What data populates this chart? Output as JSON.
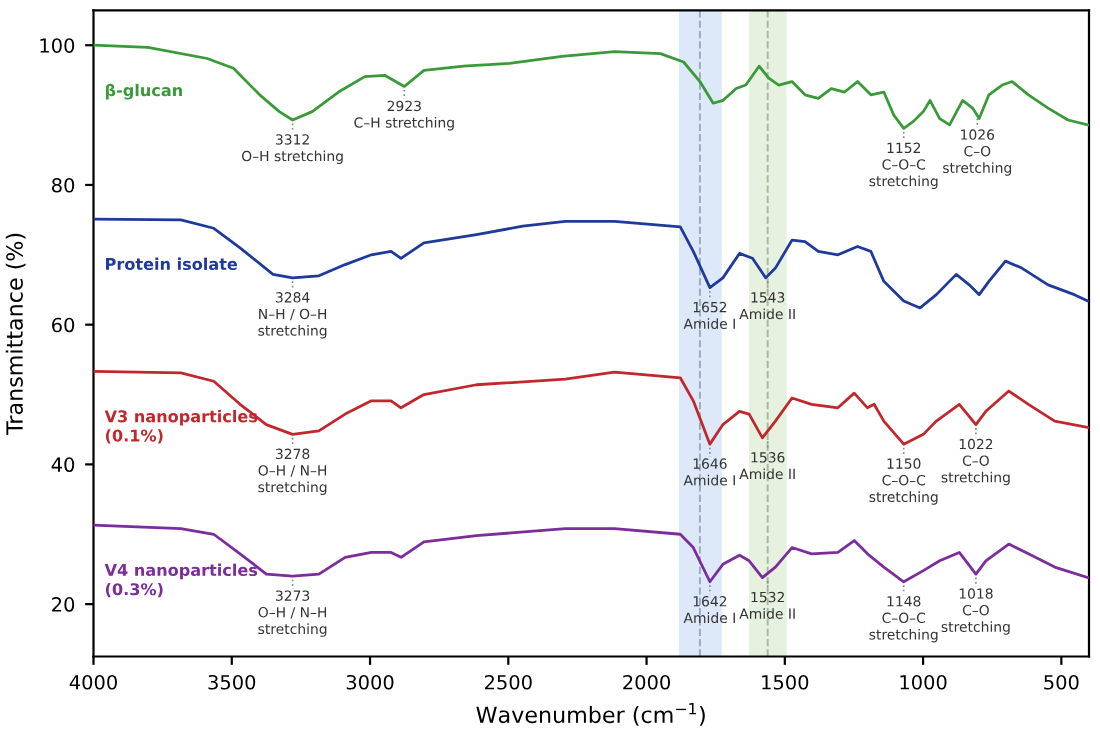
{
  "chart_data": {
    "type": "line",
    "xlabel": "Wavenumber (cm$^{−1}$)",
    "ylabel": "Transmittance (%)",
    "xlim": [
      4000,
      400
    ],
    "ylim": [
      12.5,
      105
    ],
    "xticks": [
      4000,
      3500,
      3000,
      2500,
      2000,
      1500,
      1000,
      500
    ],
    "yticks": [
      20,
      40,
      60,
      80,
      100
    ],
    "grid": false,
    "marker": "none",
    "line_style": "solid",
    "series": [
      {
        "name": "β-glucan",
        "color": "#3a9a3a",
        "x": [
          4000,
          3803,
          3589,
          3494,
          3399,
          3328,
          3280,
          3209,
          3114,
          3019,
          2947,
          2876,
          2805,
          2662,
          2496,
          2306,
          2116,
          1950,
          1866,
          1807,
          1759,
          1724,
          1676,
          1641,
          1593,
          1558,
          1522,
          1474,
          1427,
          1379,
          1332,
          1284,
          1237,
          1189,
          1142,
          1106,
          1070,
          1035,
          999,
          975,
          940,
          904,
          857,
          821,
          797,
          762,
          714,
          678,
          619,
          548,
          476,
          405
        ],
        "values": [
          100.0,
          99.7,
          98.1,
          96.7,
          92.9,
          90.5,
          89.3,
          90.5,
          93.3,
          95.5,
          95.7,
          94.1,
          96.4,
          97.0,
          97.4,
          98.4,
          99.1,
          98.8,
          97.6,
          94.8,
          91.7,
          92.1,
          93.8,
          94.3,
          97.0,
          95.3,
          94.3,
          94.8,
          92.9,
          92.4,
          93.8,
          93.3,
          94.8,
          92.9,
          93.3,
          90.0,
          88.1,
          89.1,
          90.5,
          92.1,
          89.5,
          88.6,
          92.1,
          91.0,
          89.5,
          92.9,
          94.3,
          94.8,
          92.9,
          91.0,
          89.3,
          88.6
        ]
      },
      {
        "name": "Protein isolate",
        "color": "#1f3a9a",
        "x": [
          4000,
          3684,
          3565,
          3470,
          3351,
          3280,
          3185,
          3090,
          2995,
          2924,
          2888,
          2805,
          2615,
          2448,
          2294,
          2116,
          1878,
          1831,
          1771,
          1724,
          1664,
          1617,
          1569,
          1534,
          1474,
          1427,
          1379,
          1308,
          1237,
          1189,
          1142,
          1070,
          1011,
          952,
          880,
          833,
          797,
          762,
          702,
          643,
          548,
          453,
          405
        ],
        "values": [
          75.1,
          75.0,
          73.8,
          71.0,
          67.2,
          66.7,
          67.0,
          68.6,
          70.0,
          70.5,
          69.5,
          71.7,
          72.9,
          74.1,
          74.8,
          74.8,
          74.0,
          70.5,
          65.3,
          66.7,
          70.2,
          69.5,
          66.7,
          68.1,
          72.1,
          71.9,
          70.5,
          70.0,
          71.2,
          70.5,
          66.2,
          63.4,
          62.4,
          64.3,
          67.2,
          65.7,
          64.3,
          66.2,
          69.1,
          68.1,
          65.7,
          64.3,
          63.4
        ]
      },
      {
        "name": "V3 nanoparticles\n(0.1%)",
        "color": "#c0282d",
        "x": [
          4000,
          3684,
          3565,
          3470,
          3375,
          3280,
          3185,
          3090,
          2995,
          2924,
          2888,
          2805,
          2615,
          2294,
          2116,
          1878,
          1831,
          1771,
          1724,
          1664,
          1629,
          1581,
          1534,
          1474,
          1403,
          1308,
          1249,
          1201,
          1177,
          1142,
          1070,
          999,
          952,
          869,
          809,
          773,
          690,
          619,
          524,
          405
        ],
        "values": [
          53.3,
          53.1,
          51.9,
          48.6,
          45.7,
          44.3,
          44.8,
          47.2,
          49.1,
          49.1,
          48.1,
          50.0,
          51.4,
          52.2,
          53.2,
          52.4,
          49.1,
          42.9,
          45.7,
          47.6,
          47.2,
          43.8,
          46.2,
          49.5,
          48.6,
          48.1,
          50.2,
          48.1,
          48.6,
          46.2,
          42.9,
          44.3,
          46.2,
          48.6,
          45.7,
          47.6,
          50.5,
          48.6,
          46.2,
          45.3
        ]
      },
      {
        "name": "V4 nanoparticles\n(0.3%)",
        "color": "#7b2d9b",
        "x": [
          4000,
          3684,
          3565,
          3470,
          3375,
          3280,
          3185,
          3090,
          2995,
          2924,
          2888,
          2805,
          2615,
          2294,
          2116,
          1878,
          1831,
          1771,
          1724,
          1664,
          1629,
          1581,
          1534,
          1474,
          1403,
          1308,
          1249,
          1201,
          1142,
          1070,
          999,
          940,
          869,
          809,
          773,
          690,
          619,
          524,
          405
        ],
        "values": [
          31.3,
          30.8,
          30.0,
          27.2,
          24.3,
          24.0,
          24.3,
          26.7,
          27.4,
          27.4,
          26.7,
          28.9,
          29.8,
          30.8,
          30.8,
          30.0,
          28.1,
          23.2,
          25.7,
          27.0,
          26.2,
          23.8,
          25.3,
          28.1,
          27.2,
          27.4,
          29.1,
          27.2,
          25.3,
          23.2,
          24.8,
          26.2,
          27.4,
          24.3,
          26.2,
          28.6,
          27.2,
          25.3,
          23.8
        ]
      }
    ],
    "bands": [
      {
        "axis": "x",
        "from": 1883,
        "to": 1728,
        "label": null,
        "color": "#cfe0f5"
      },
      {
        "axis": "x",
        "from": 1629,
        "to": 1493,
        "label": null,
        "color": "#dcebd2"
      }
    ],
    "ref_lines": [
      {
        "axis": "x",
        "value": 1807,
        "label": null,
        "color": "#9aaac0",
        "line_style": "dashed"
      },
      {
        "axis": "x",
        "value": 1562,
        "label": null,
        "color": "#a8b89a",
        "line_style": "dashed"
      }
    ],
    "annotations": [
      {
        "text": "3312\nO–H stretching",
        "x": 3280,
        "y": 89.3
      },
      {
        "text": "2923\nC–H stretching",
        "x": 2876,
        "y": 94.1
      },
      {
        "text": "1152\nC–O–C\nstretching",
        "x": 1070,
        "y": 88.1
      },
      {
        "text": "1026\nC–O\nstretching",
        "x": 804,
        "y": 90.0
      },
      {
        "text": "3284\nN–H / O–H\nstretching",
        "x": 3280,
        "y": 66.7
      },
      {
        "text": "1652\nAmide I",
        "x": 1771,
        "y": 65.3
      },
      {
        "text": "1543\nAmide II",
        "x": 1562,
        "y": 66.7
      },
      {
        "text": "3278\nO–H / N–H\nstretching",
        "x": 3280,
        "y": 44.3
      },
      {
        "text": "1646\nAmide I",
        "x": 1771,
        "y": 42.9
      },
      {
        "text": "1536\nAmide II",
        "x": 1562,
        "y": 43.8
      },
      {
        "text": "1150\nC–O–C\nstretching",
        "x": 1070,
        "y": 42.9
      },
      {
        "text": "1022\nC–O\nstretching",
        "x": 809,
        "y": 45.7
      },
      {
        "text": "3273\nO–H / N–H\nstretching",
        "x": 3280,
        "y": 24.0
      },
      {
        "text": "1642\nAmide I",
        "x": 1771,
        "y": 23.2
      },
      {
        "text": "1532\nAmide II",
        "x": 1562,
        "y": 23.8
      },
      {
        "text": "1148\nC–O–C\nstretching",
        "x": 1070,
        "y": 23.2
      },
      {
        "text": "1018\nC–O\nstretching",
        "x": 809,
        "y": 24.3
      }
    ]
  }
}
